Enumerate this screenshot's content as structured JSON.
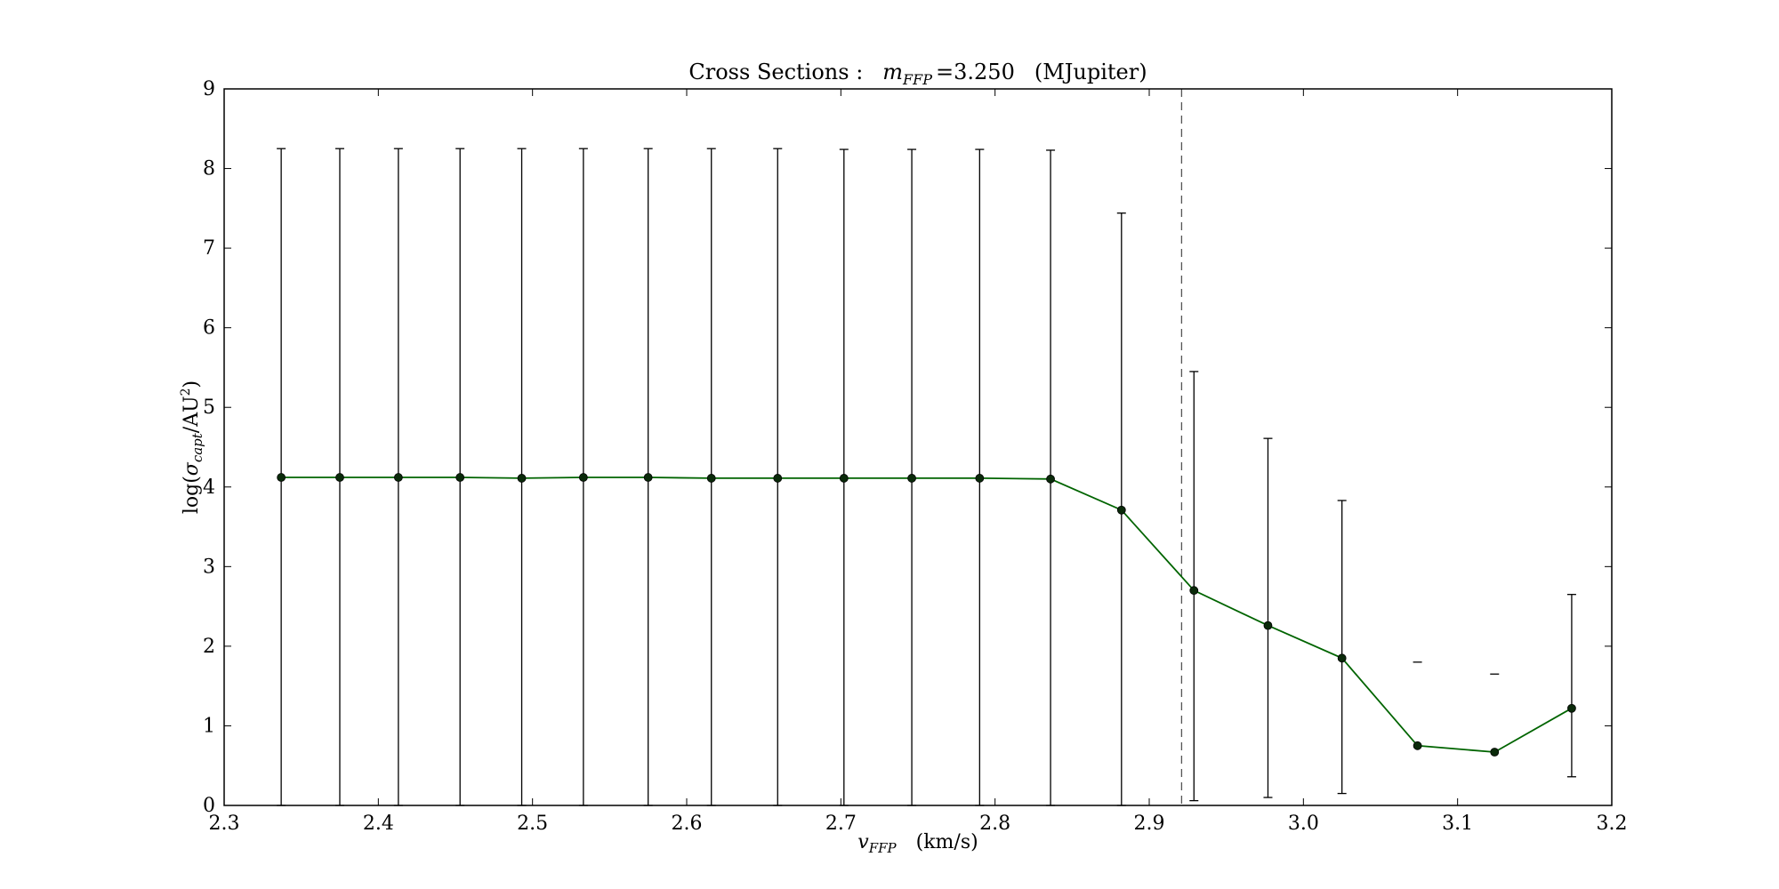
{
  "title": {
    "prefix": "Cross    Sections :",
    "var_main": "m",
    "var_sub": "FFP",
    "value": "=3.250",
    "unit": "(MJupiter)"
  },
  "xlabel": {
    "var_main": "v",
    "var_sub": "FFP",
    "unit": "(km/s)"
  },
  "ylabel": {
    "prefix": "log(",
    "var_main": "σ",
    "var_sub": "capt",
    "mid": "/AU",
    "sup": "2",
    "suffix": ")"
  },
  "colors": {
    "line": "#006400",
    "marker": "#0a2a0a",
    "errorbar": "#000000",
    "vline": "#555555",
    "axes": "#000000"
  },
  "chart_data": {
    "type": "line",
    "xlim": [
      2.3,
      3.2
    ],
    "ylim": [
      0,
      9
    ],
    "x_ticks": [
      "2.3",
      "2.4",
      "2.5",
      "2.6",
      "2.7",
      "2.8",
      "2.9",
      "3.0",
      "3.1",
      "3.2"
    ],
    "y_ticks": [
      "0",
      "1",
      "2",
      "3",
      "4",
      "5",
      "6",
      "7",
      "8",
      "9"
    ],
    "grid": false,
    "legend": "none",
    "series": [
      {
        "x": [
          2.337,
          2.375,
          2.413,
          2.453,
          2.493,
          2.533,
          2.575,
          2.616,
          2.659,
          2.702,
          2.746,
          2.79,
          2.836,
          2.882,
          2.929,
          2.977,
          3.025,
          3.074,
          3.124,
          3.174
        ],
        "y": [
          4.12,
          4.12,
          4.12,
          4.12,
          4.11,
          4.12,
          4.12,
          4.11,
          4.11,
          4.11,
          4.11,
          4.11,
          4.1,
          3.71,
          2.7,
          2.26,
          1.85,
          0.75,
          0.67,
          1.22
        ],
        "y_upper": [
          8.25,
          8.25,
          8.25,
          8.25,
          8.25,
          8.25,
          8.25,
          8.25,
          8.25,
          8.24,
          8.24,
          8.24,
          8.23,
          7.44,
          5.45,
          4.61,
          3.83,
          1.8,
          1.65,
          2.65
        ],
        "y_lower": [
          0.0,
          0.0,
          0.0,
          0.0,
          0.0,
          0.0,
          0.0,
          0.0,
          0.0,
          0.0,
          0.0,
          0.0,
          0.0,
          0.0,
          0.06,
          0.1,
          0.15,
          1.8,
          1.65,
          0.36
        ]
      }
    ],
    "vline_x": 2.921
  }
}
